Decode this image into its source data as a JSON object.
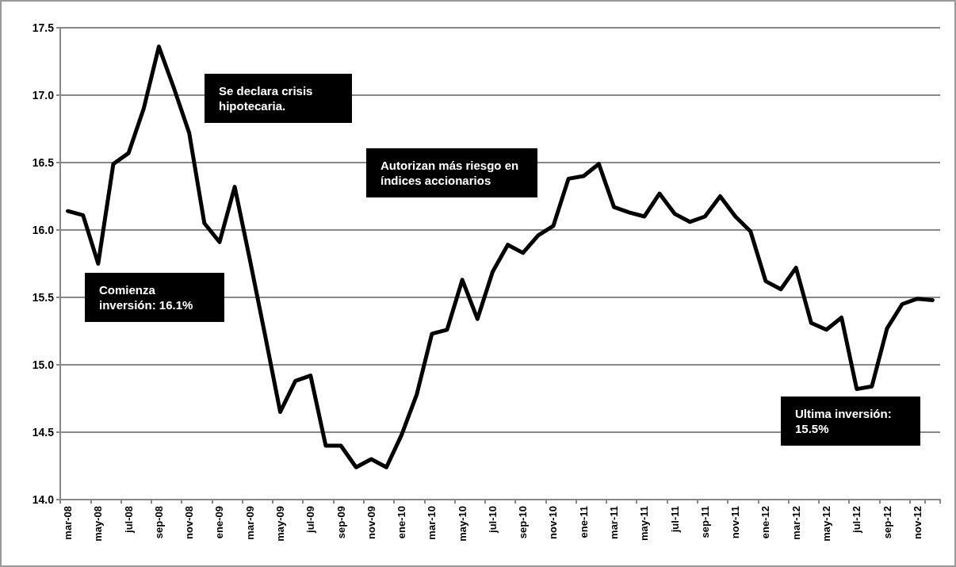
{
  "chart_data": {
    "type": "line",
    "categories": [
      "mar-08",
      null,
      "may-08",
      null,
      "jul-08",
      null,
      "sep-08",
      null,
      "nov-08",
      null,
      "ene-09",
      null,
      "mar-09",
      null,
      "may-09",
      null,
      "jul-09",
      null,
      "sep-09",
      null,
      "nov-09",
      null,
      "ene-10",
      null,
      "mar-10",
      null,
      "may-10",
      null,
      "jul-10",
      null,
      "sep-10",
      null,
      "nov-10",
      null,
      "ene-11",
      null,
      "mar-11",
      null,
      "may-11",
      null,
      "jul-11",
      null,
      "sep-11",
      null,
      "nov-11",
      null,
      "ene-12",
      null,
      "mar-12",
      null,
      "may-12",
      null,
      "jul-12",
      null,
      "sep-12",
      null,
      "nov-12",
      null
    ],
    "series": [
      {
        "color": "#000000",
        "values": [
          16.14,
          16.11,
          15.75,
          16.49,
          16.57,
          16.9,
          17.36,
          17.05,
          16.72,
          16.05,
          15.91,
          16.32,
          15.78,
          15.22,
          14.65,
          14.88,
          14.92,
          14.4,
          14.4,
          14.24,
          14.3,
          14.24,
          14.48,
          14.78,
          15.23,
          15.26,
          15.63,
          15.34,
          15.69,
          15.89,
          15.83,
          15.96,
          16.03,
          16.38,
          16.4,
          16.49,
          16.17,
          16.13,
          16.1,
          16.27,
          16.12,
          16.06,
          16.1,
          16.25,
          16.1,
          15.99,
          15.62,
          15.56,
          15.72,
          15.31,
          15.26,
          15.35,
          14.82,
          14.84,
          15.27,
          15.45,
          15.49,
          15.48
        ]
      }
    ],
    "ylim": [
      14.0,
      17.5
    ],
    "yticks": [
      {
        "value": 14,
        "label": "14.0"
      },
      {
        "value": 14.5,
        "label": "14.5"
      },
      {
        "value": 15,
        "label": "15.0"
      },
      {
        "value": 15.5,
        "label": "15.5"
      },
      {
        "value": 16,
        "label": "16.0"
      },
      {
        "value": 16.5,
        "label": "16.5"
      },
      {
        "value": 17,
        "label": "17.0"
      },
      {
        "value": 17.5,
        "label": "17.5"
      }
    ],
    "grid": "y",
    "marker": "none",
    "line_style": "solid",
    "annotations": [
      "Se declara crisis hipotecaria.",
      "Comienza inversión: 16.1%",
      "Autorizan más riesgo en índices accionarios",
      "Ultima inversión: 15.5%"
    ]
  }
}
